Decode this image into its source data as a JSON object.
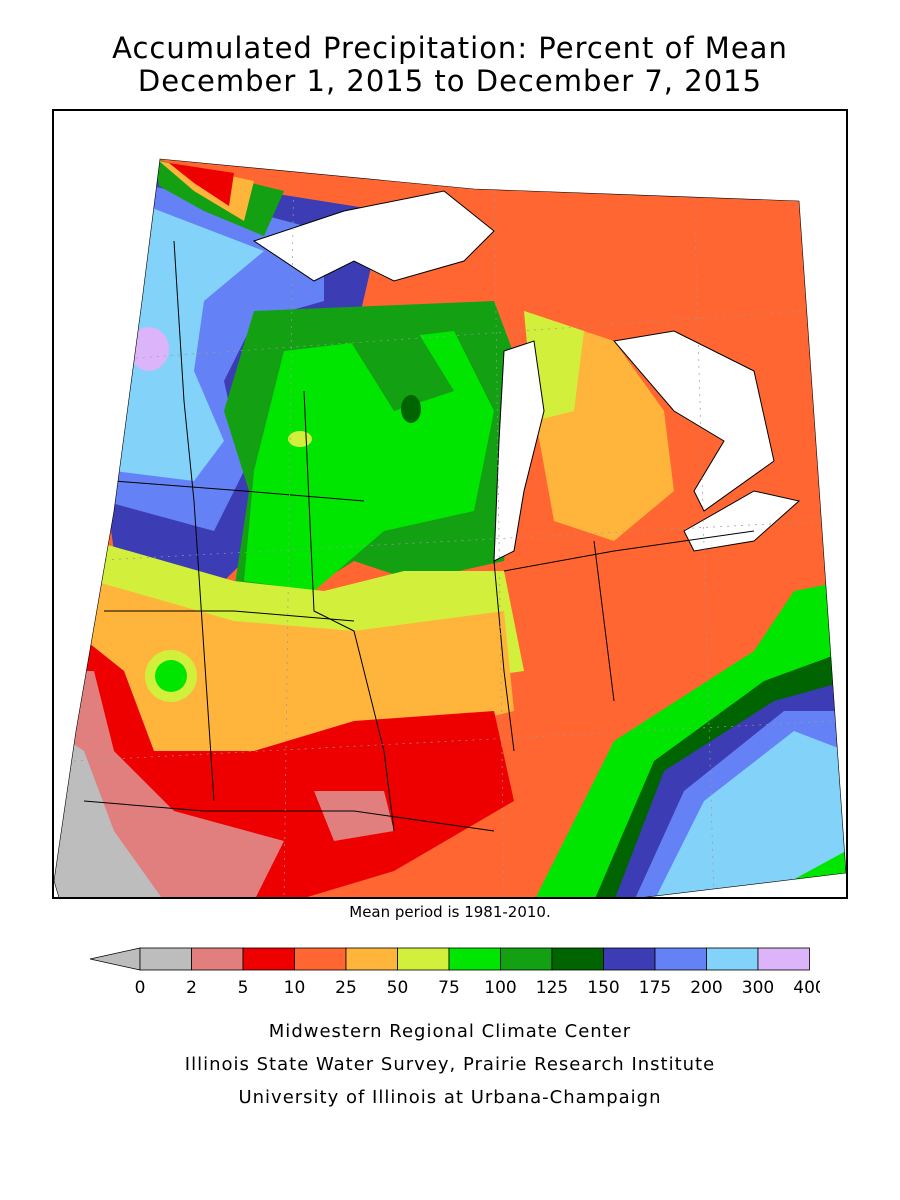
{
  "title": {
    "line1": "Accumulated Precipitation: Percent of Mean",
    "line2": "December 1, 2015 to December 7, 2015"
  },
  "note": "Mean period is 1981-2010.",
  "legend": {
    "tick_labels": [
      "0",
      "2",
      "5",
      "10",
      "25",
      "50",
      "75",
      "100",
      "125",
      "150",
      "175",
      "200",
      "300",
      "400"
    ],
    "colors": [
      "#bdbdbd",
      "#e17f7f",
      "#ee0000",
      "#ff6632",
      "#ffb43c",
      "#d2ef3c",
      "#00e600",
      "#13a013",
      "#006400",
      "#3c3cb4",
      "#6482f5",
      "#82d2fa",
      "#dcb4fa"
    ],
    "below_color": "#bdbdbd"
  },
  "credits": [
    "Midwestern Regional Climate Center",
    "Illinois State Water Survey, Prairie Research Institute",
    "University of Illinois at Urbana-Champaign"
  ]
}
